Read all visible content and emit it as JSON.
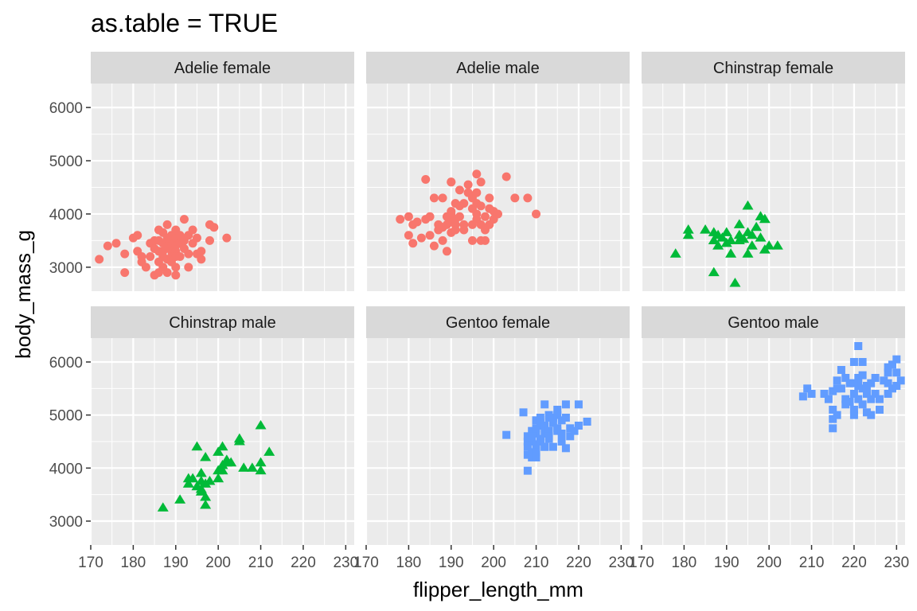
{
  "chart_data": {
    "type": "scatter",
    "title": "as.table = TRUE",
    "xlabel": "flipper_length_mm",
    "ylabel": "body_mass_g",
    "xlim": [
      170,
      232
    ],
    "ylim": [
      2550,
      6450
    ],
    "x_ticks": [
      "170",
      "180",
      "190",
      "200",
      "210",
      "220",
      "230"
    ],
    "y_ticks": [
      "3000",
      "4000",
      "5000",
      "6000"
    ],
    "grid": true,
    "legend": "none",
    "colors": {
      "Adelie": "#F8766D",
      "Chinstrap": "#00BA38",
      "Gentoo": "#619CFF",
      "panel_bg": "#EBEBEB",
      "strip_bg": "#D9D9D9",
      "grid": "#FFFFFF"
    },
    "shapes": {
      "Adelie": "circle",
      "Chinstrap": "triangle",
      "Gentoo": "square"
    },
    "panels": [
      {
        "label": "Adelie female",
        "species": "Adelie",
        "points": [
          [
            172,
            3150
          ],
          [
            174,
            3400
          ],
          [
            176,
            3450
          ],
          [
            178,
            3250
          ],
          [
            178,
            2900
          ],
          [
            180,
            3550
          ],
          [
            181,
            3300
          ],
          [
            181,
            3600
          ],
          [
            182,
            3100
          ],
          [
            182,
            3200
          ],
          [
            183,
            3000
          ],
          [
            184,
            3450
          ],
          [
            184,
            3200
          ],
          [
            185,
            2850
          ],
          [
            185,
            3500
          ],
          [
            185,
            3350
          ],
          [
            186,
            3700
          ],
          [
            186,
            3500
          ],
          [
            186,
            3300
          ],
          [
            186,
            3100
          ],
          [
            187,
            3450
          ],
          [
            187,
            3300
          ],
          [
            187,
            3200
          ],
          [
            187,
            3000
          ],
          [
            187,
            3650
          ],
          [
            188,
            3800
          ],
          [
            188,
            3500
          ],
          [
            188,
            3400
          ],
          [
            188,
            3150
          ],
          [
            188,
            2900
          ],
          [
            189,
            3600
          ],
          [
            189,
            3450
          ],
          [
            189,
            3300
          ],
          [
            189,
            3200
          ],
          [
            189,
            3100
          ],
          [
            190,
            3550
          ],
          [
            190,
            3400
          ],
          [
            190,
            3300
          ],
          [
            190,
            3000
          ],
          [
            190,
            2850
          ],
          [
            190,
            3700
          ],
          [
            191,
            3600
          ],
          [
            191,
            3450
          ],
          [
            191,
            3200
          ],
          [
            192,
            3350
          ],
          [
            192,
            3500
          ],
          [
            193,
            3250
          ],
          [
            193,
            3600
          ],
          [
            193,
            3000
          ],
          [
            194,
            3450
          ],
          [
            195,
            3550
          ],
          [
            195,
            3250
          ],
          [
            196,
            3300
          ],
          [
            196,
            3150
          ],
          [
            198,
            3500
          ],
          [
            198,
            3800
          ],
          [
            199,
            3750
          ],
          [
            202,
            3550
          ],
          [
            194,
            3700
          ],
          [
            192,
            3900
          ],
          [
            190,
            3200
          ],
          [
            188,
            3550
          ],
          [
            186,
            2900
          ]
        ]
      },
      {
        "label": "Adelie male",
        "species": "Adelie",
        "points": [
          [
            178,
            3900
          ],
          [
            180,
            3950
          ],
          [
            180,
            3600
          ],
          [
            181,
            3800
          ],
          [
            181,
            3450
          ],
          [
            182,
            3850
          ],
          [
            183,
            3550
          ],
          [
            184,
            4650
          ],
          [
            184,
            3900
          ],
          [
            185,
            3950
          ],
          [
            185,
            3600
          ],
          [
            186,
            3400
          ],
          [
            186,
            4300
          ],
          [
            187,
            3700
          ],
          [
            187,
            3800
          ],
          [
            188,
            4300
          ],
          [
            188,
            3500
          ],
          [
            189,
            3950
          ],
          [
            189,
            3800
          ],
          [
            189,
            3300
          ],
          [
            190,
            4600
          ],
          [
            190,
            4050
          ],
          [
            190,
            3850
          ],
          [
            190,
            3650
          ],
          [
            190,
            4000
          ],
          [
            191,
            4200
          ],
          [
            191,
            3800
          ],
          [
            191,
            3900
          ],
          [
            191,
            3700
          ],
          [
            192,
            4450
          ],
          [
            192,
            4150
          ],
          [
            192,
            3950
          ],
          [
            193,
            4200
          ],
          [
            193,
            3700
          ],
          [
            193,
            3800
          ],
          [
            194,
            4400
          ],
          [
            195,
            4100
          ],
          [
            195,
            3800
          ],
          [
            195,
            4300
          ],
          [
            196,
            4750
          ],
          [
            196,
            4400
          ],
          [
            196,
            4200
          ],
          [
            196,
            4000
          ],
          [
            196,
            3900
          ],
          [
            197,
            4600
          ],
          [
            197,
            4150
          ],
          [
            197,
            3800
          ],
          [
            197,
            3500
          ],
          [
            198,
            3700
          ],
          [
            198,
            3950
          ],
          [
            198,
            3500
          ],
          [
            199,
            4300
          ],
          [
            199,
            4100
          ],
          [
            199,
            3800
          ],
          [
            200,
            4050
          ],
          [
            201,
            4000
          ],
          [
            203,
            4700
          ],
          [
            205,
            4300
          ],
          [
            208,
            4300
          ],
          [
            210,
            4000
          ],
          [
            194,
            4550
          ],
          [
            195,
            3500
          ],
          [
            190,
            4600
          ],
          [
            188,
            3750
          ],
          [
            200,
            3900
          ]
        ]
      },
      {
        "label": "Chinstrap female",
        "species": "Chinstrap",
        "points": [
          [
            178,
            3250
          ],
          [
            181,
            3700
          ],
          [
            181,
            3600
          ],
          [
            185,
            3700
          ],
          [
            187,
            3650
          ],
          [
            187,
            3500
          ],
          [
            187,
            2900
          ],
          [
            188,
            3600
          ],
          [
            188,
            3400
          ],
          [
            189,
            3550
          ],
          [
            190,
            3450
          ],
          [
            190,
            3650
          ],
          [
            191,
            3500
          ],
          [
            191,
            3250
          ],
          [
            192,
            2700
          ],
          [
            193,
            3800
          ],
          [
            193,
            3500
          ],
          [
            193,
            3600
          ],
          [
            194,
            3525
          ],
          [
            195,
            4150
          ],
          [
            195,
            3650
          ],
          [
            195,
            3250
          ],
          [
            196,
            3400
          ],
          [
            196,
            3600
          ],
          [
            197,
            3750
          ],
          [
            198,
            3950
          ],
          [
            198,
            3550
          ],
          [
            199,
            3900
          ],
          [
            199,
            3325
          ],
          [
            200,
            3400
          ],
          [
            202,
            3400
          ]
        ]
      },
      {
        "label": "Chinstrap male",
        "species": "Chinstrap",
        "points": [
          [
            187,
            3250
          ],
          [
            191,
            3400
          ],
          [
            193,
            3800
          ],
          [
            193,
            3700
          ],
          [
            194,
            3800
          ],
          [
            195,
            4400
          ],
          [
            195,
            3650
          ],
          [
            196,
            3750
          ],
          [
            196,
            3600
          ],
          [
            196,
            3550
          ],
          [
            196,
            3900
          ],
          [
            197,
            3700
          ],
          [
            197,
            3450
          ],
          [
            197,
            3300
          ],
          [
            197,
            4200
          ],
          [
            198,
            3750
          ],
          [
            200,
            3950
          ],
          [
            200,
            3800
          ],
          [
            201,
            4050
          ],
          [
            201,
            3950
          ],
          [
            202,
            4150
          ],
          [
            202,
            4100
          ],
          [
            203,
            4100
          ],
          [
            205,
            4500
          ],
          [
            205,
            4550
          ],
          [
            206,
            4000
          ],
          [
            208,
            4000
          ],
          [
            210,
            4100
          ],
          [
            210,
            3950
          ],
          [
            210,
            4800
          ],
          [
            212,
            4300
          ],
          [
            201,
            4400
          ],
          [
            200,
            4300
          ]
        ]
      },
      {
        "label": "Gentoo female",
        "species": "Gentoo",
        "points": [
          [
            203,
            4625
          ],
          [
            207,
            5050
          ],
          [
            208,
            4400
          ],
          [
            208,
            4600
          ],
          [
            208,
            4500
          ],
          [
            208,
            4250
          ],
          [
            208,
            3950
          ],
          [
            209,
            4300
          ],
          [
            209,
            4500
          ],
          [
            209,
            4700
          ],
          [
            209,
            4200
          ],
          [
            210,
            4650
          ],
          [
            210,
            4450
          ],
          [
            210,
            4400
          ],
          [
            210,
            4900
          ],
          [
            210,
            4750
          ],
          [
            211,
            4550
          ],
          [
            211,
            4500
          ],
          [
            211,
            4800
          ],
          [
            211,
            4850
          ],
          [
            212,
            5200
          ],
          [
            212,
            4800
          ],
          [
            212,
            4650
          ],
          [
            212,
            4400
          ],
          [
            213,
            4950
          ],
          [
            213,
            4700
          ],
          [
            213,
            4600
          ],
          [
            213,
            5000
          ],
          [
            214,
            4850
          ],
          [
            214,
            4400
          ],
          [
            214,
            4950
          ],
          [
            215,
            4750
          ],
          [
            215,
            5000
          ],
          [
            215,
            4700
          ],
          [
            216,
            4500
          ],
          [
            216,
            4650
          ],
          [
            216,
            4900
          ],
          [
            217,
            5200
          ],
          [
            217,
            4950
          ],
          [
            217,
            4375
          ],
          [
            218,
            4750
          ],
          [
            218,
            4600
          ],
          [
            219,
            4700
          ],
          [
            220,
            5200
          ],
          [
            220,
            4800
          ],
          [
            222,
            4875
          ],
          [
            215,
            5100
          ],
          [
            212,
            4400
          ],
          [
            210,
            4300
          ],
          [
            211,
            4950
          ],
          [
            213,
            4550
          ],
          [
            209,
            4600
          ],
          [
            210,
            4200
          ]
        ]
      },
      {
        "label": "Gentoo male",
        "species": "Gentoo",
        "points": [
          [
            208,
            5350
          ],
          [
            209,
            5500
          ],
          [
            210,
            5400
          ],
          [
            213,
            5400
          ],
          [
            214,
            5300
          ],
          [
            215,
            5450
          ],
          [
            215,
            5100
          ],
          [
            215,
            4925
          ],
          [
            215,
            4750
          ],
          [
            216,
            5500
          ],
          [
            216,
            5650
          ],
          [
            216,
            5000
          ],
          [
            217,
            5850
          ],
          [
            217,
            5500
          ],
          [
            218,
            5700
          ],
          [
            218,
            5300
          ],
          [
            219,
            5600
          ],
          [
            219,
            5250
          ],
          [
            220,
            5400
          ],
          [
            220,
            5100
          ],
          [
            220,
            5000
          ],
          [
            220,
            6000
          ],
          [
            221,
            6300
          ],
          [
            221,
            5700
          ],
          [
            221,
            5550
          ],
          [
            221,
            5300
          ],
          [
            222,
            6000
          ],
          [
            222,
            5750
          ],
          [
            222,
            5500
          ],
          [
            222,
            5200
          ],
          [
            223,
            5400
          ],
          [
            223,
            5550
          ],
          [
            223,
            5050
          ],
          [
            224,
            5600
          ],
          [
            224,
            5300
          ],
          [
            225,
            5700
          ],
          [
            225,
            5400
          ],
          [
            226,
            5100
          ],
          [
            226,
            5300
          ],
          [
            227,
            5650
          ],
          [
            228,
            5600
          ],
          [
            228,
            5800
          ],
          [
            228,
            5400
          ],
          [
            229,
            5950
          ],
          [
            229,
            5500
          ],
          [
            230,
            6050
          ],
          [
            230,
            5800
          ],
          [
            230,
            5550
          ],
          [
            231,
            5650
          ],
          [
            224,
            5000
          ],
          [
            218,
            5200
          ],
          [
            228,
            5900
          ],
          [
            220,
            5600
          ]
        ]
      }
    ]
  }
}
